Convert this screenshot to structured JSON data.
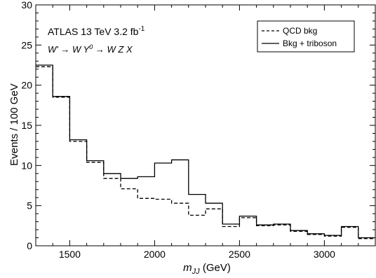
{
  "chart_data": {
    "type": "line",
    "title": "",
    "xlabel": "m_JJ (GeV)",
    "xlabel_main": "m",
    "xlabel_sub": "JJ",
    "xlabel_unit": " (GeV)",
    "ylabel": "Events / 100 GeV",
    "xlim": [
      1300,
      3300
    ],
    "ylim": [
      0,
      30
    ],
    "xticks": [
      1500,
      2000,
      2500,
      3000
    ],
    "yticks": [
      0,
      5,
      10,
      15,
      20,
      25,
      30
    ],
    "grid": false,
    "legend_position": "top-right",
    "bin_edges": [
      1300,
      1400,
      1500,
      1600,
      1700,
      1800,
      1900,
      2000,
      2100,
      2200,
      2300,
      2400,
      2500,
      2600,
      2700,
      2800,
      2900,
      3000,
      3100,
      3200,
      3300
    ],
    "series": [
      {
        "name": "QCD bkg",
        "style": "dashed",
        "values": [
          22.3,
          18.5,
          13.0,
          10.4,
          8.4,
          7.1,
          5.9,
          5.8,
          5.3,
          3.8,
          4.6,
          2.4,
          3.5,
          2.5,
          2.6,
          1.8,
          1.4,
          1.2,
          2.3,
          0.9
        ]
      },
      {
        "name": "Bkg + triboson",
        "style": "solid",
        "values": [
          22.5,
          18.6,
          13.2,
          10.6,
          9.0,
          8.4,
          8.6,
          10.3,
          10.7,
          6.4,
          5.3,
          2.7,
          3.7,
          2.6,
          2.7,
          1.9,
          1.5,
          1.3,
          2.4,
          1.0
        ]
      }
    ],
    "annotations": {
      "line1_main": "ATLAS 13 TeV 3.2 fb",
      "line1_sup": "-1",
      "line2_a": "W' → W Y",
      "line2_sup": "0",
      "line2_b": " → W Z X"
    }
  }
}
